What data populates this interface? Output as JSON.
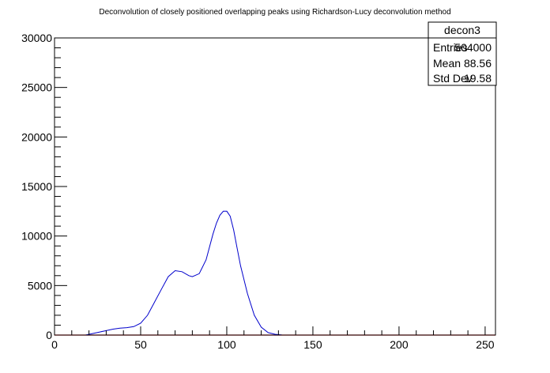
{
  "chart_data": {
    "type": "line",
    "title": "Deconvolution of closely positioned overlapping peaks using Richardson-Lucy deconvolution method",
    "xlabel": "",
    "ylabel": "",
    "xlim": [
      0,
      256
    ],
    "ylim": [
      0,
      30000
    ],
    "x_ticks": [
      0,
      50,
      100,
      150,
      200,
      250
    ],
    "y_ticks": [
      0,
      5000,
      10000,
      15000,
      20000,
      25000,
      30000
    ],
    "grid": false,
    "series": [
      {
        "color": "#0000cc",
        "x": [
          18,
          22,
          26,
          30,
          34,
          38,
          42,
          46,
          50,
          54,
          58,
          62,
          66,
          70,
          74,
          78,
          80,
          84,
          88,
          92,
          94,
          96,
          98,
          100,
          102,
          104,
          106,
          108,
          112,
          116,
          120,
          124,
          128,
          132,
          134
        ],
        "y": [
          0,
          150,
          300,
          450,
          600,
          700,
          750,
          850,
          1200,
          2000,
          3300,
          4600,
          5900,
          6500,
          6400,
          6000,
          5900,
          6200,
          7600,
          10200,
          11300,
          12100,
          12500,
          12500,
          12000,
          10600,
          8800,
          7000,
          4200,
          2000,
          800,
          250,
          80,
          10,
          0
        ]
      }
    ],
    "baseline": {
      "color": "#ff0000",
      "value": 0,
      "x": [
        0,
        256
      ]
    },
    "stats_box": {
      "name": "decon3",
      "rows": [
        {
          "label": "Entries",
          "value": "504000"
        },
        {
          "label": "Mean",
          "value": "88.56"
        },
        {
          "label": "Std Dev",
          "value": "19.58"
        }
      ]
    }
  }
}
